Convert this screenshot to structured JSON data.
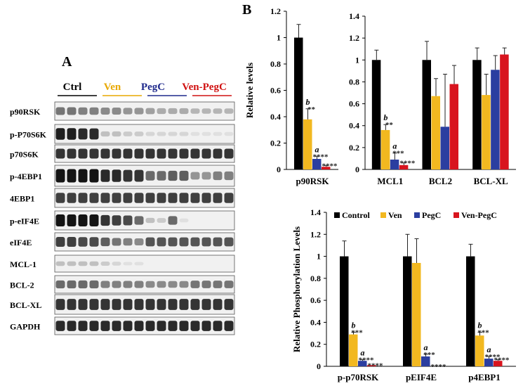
{
  "panel_labels": {
    "A": "A",
    "B": "B"
  },
  "blot": {
    "groups": [
      {
        "label": "Ctrl",
        "color": "#000000"
      },
      {
        "label": "Ven",
        "color": "#e8a800"
      },
      {
        "label": "PegC",
        "color": "#1f2a8c"
      },
      {
        "label": "Ven-PegC",
        "color": "#d01010"
      }
    ],
    "rows": [
      {
        "label": "p90RSK",
        "intensities": [
          0.55,
          0.55,
          0.5,
          0.5,
          0.45,
          0.45,
          0.4,
          0.4,
          0.35,
          0.3,
          0.3,
          0.3,
          0.25,
          0.25,
          0.25,
          0.25
        ]
      },
      {
        "label": "p-P70S6K",
        "intensities": [
          0.95,
          0.95,
          0.9,
          0.9,
          0.2,
          0.2,
          0.15,
          0.15,
          0.1,
          0.1,
          0.1,
          0.1,
          0.05,
          0.05,
          0.05,
          0.05
        ]
      },
      {
        "label": "p70S6K",
        "intensities": [
          0.85,
          0.85,
          0.85,
          0.85,
          0.85,
          0.85,
          0.85,
          0.85,
          0.85,
          0.85,
          0.85,
          0.85,
          0.85,
          0.85,
          0.85,
          0.85
        ]
      },
      {
        "label": "p-4EBP1",
        "intensities": [
          1,
          1,
          1,
          1,
          0.9,
          0.9,
          0.85,
          0.85,
          0.6,
          0.6,
          0.65,
          0.65,
          0.4,
          0.4,
          0.5,
          0.5
        ]
      },
      {
        "label": "4EBP1",
        "intensities": [
          0.8,
          0.8,
          0.8,
          0.8,
          0.8,
          0.8,
          0.8,
          0.8,
          0.8,
          0.8,
          0.8,
          0.8,
          0.8,
          0.8,
          0.8,
          0.8
        ]
      },
      {
        "label": "p-eIF4E",
        "intensities": [
          1,
          1,
          1,
          1,
          0.85,
          0.8,
          0.75,
          0.6,
          0.2,
          0.15,
          0.6,
          0.05,
          0,
          0,
          0,
          0
        ]
      },
      {
        "label": "eIF4E",
        "intensities": [
          0.8,
          0.8,
          0.75,
          0.75,
          0.65,
          0.55,
          0.5,
          0.45,
          0.7,
          0.7,
          0.7,
          0.7,
          0.7,
          0.7,
          0.7,
          0.7
        ]
      },
      {
        "label": "MCL-1",
        "intensities": [
          0.2,
          0.2,
          0.2,
          0.2,
          0.15,
          0.1,
          0.05,
          0.05,
          0,
          0,
          0,
          0,
          0,
          0,
          0,
          0
        ]
      },
      {
        "label": "BCL-2",
        "intensities": [
          0.6,
          0.6,
          0.6,
          0.6,
          0.5,
          0.5,
          0.5,
          0.5,
          0.45,
          0.45,
          0.45,
          0.45,
          0.55,
          0.55,
          0.55,
          0.55
        ]
      },
      {
        "label": "BCL-XL",
        "intensities": [
          0.85,
          0.85,
          0.85,
          0.85,
          0.85,
          0.85,
          0.85,
          0.85,
          0.85,
          0.85,
          0.85,
          0.85,
          0.85,
          0.85,
          0.85,
          0.85
        ]
      },
      {
        "label": "GAPDH",
        "intensities": [
          0.9,
          0.9,
          0.9,
          0.9,
          0.9,
          0.9,
          0.9,
          0.9,
          0.9,
          0.9,
          0.9,
          0.9,
          0.9,
          0.9,
          0.9,
          0.9
        ]
      }
    ]
  },
  "chart_data": [
    {
      "type": "bar",
      "title": "",
      "xlabel": "",
      "ylabel": "Relative levels",
      "ylim": [
        0,
        1.2
      ],
      "yticks": [
        "0",
        "0.2",
        "0.4",
        "0.6",
        "0.8",
        "1",
        "1.2"
      ],
      "categories": [
        "p90RSK"
      ],
      "series": [
        {
          "name": "Control",
          "color": "#000000",
          "values": [
            1.0
          ],
          "errors": [
            0.1
          ],
          "annotations": [
            ""
          ],
          "letters": [
            ""
          ]
        },
        {
          "name": "Ven",
          "color": "#f2b820",
          "values": [
            0.38
          ],
          "errors": [
            0.08
          ],
          "annotations": [
            "**"
          ],
          "letters": [
            "b"
          ]
        },
        {
          "name": "PegC",
          "color": "#2b3ea0",
          "values": [
            0.08
          ],
          "errors": [
            0.02
          ],
          "annotations": [
            "****"
          ],
          "letters": [
            "a"
          ]
        },
        {
          "name": "Ven-PegC",
          "color": "#d8141e",
          "values": [
            0.02
          ],
          "errors": [
            0.01
          ],
          "annotations": [
            "****"
          ],
          "letters": [
            ""
          ]
        }
      ]
    },
    {
      "type": "bar",
      "title": "",
      "xlabel": "",
      "ylabel": "",
      "ylim": [
        0,
        1.4
      ],
      "yticks": [
        "0",
        "0.2",
        "0.4",
        "0.6",
        "0.8",
        "1",
        "1.2",
        "1.4"
      ],
      "categories": [
        "MCL1",
        "BCL2",
        "BCL-XL"
      ],
      "series": [
        {
          "name": "Control",
          "color": "#000000",
          "values": [
            1.0,
            1.0,
            1.0
          ],
          "errors": [
            0.09,
            0.17,
            0.11
          ],
          "annotations": [
            "",
            "",
            ""
          ],
          "letters": [
            "",
            "",
            ""
          ]
        },
        {
          "name": "Ven",
          "color": "#f2b820",
          "values": [
            0.36,
            0.67,
            0.68
          ],
          "errors": [
            0.05,
            0.16,
            0.19
          ],
          "annotations": [
            "**",
            "",
            ""
          ],
          "letters": [
            "b",
            "",
            ""
          ]
        },
        {
          "name": "PegC",
          "color": "#2b3ea0",
          "values": [
            0.09,
            0.39,
            0.91
          ],
          "errors": [
            0.06,
            0.48,
            0.13
          ],
          "annotations": [
            "***",
            "",
            ""
          ],
          "letters": [
            "a",
            "",
            ""
          ]
        },
        {
          "name": "Ven-PegC",
          "color": "#d8141e",
          "values": [
            0.04,
            0.78,
            1.05
          ],
          "errors": [
            0.02,
            0.17,
            0.06
          ],
          "annotations": [
            "****",
            "",
            ""
          ],
          "letters": [
            "",
            "",
            ""
          ]
        }
      ]
    },
    {
      "type": "bar",
      "title": "",
      "xlabel": "",
      "ylabel": "Relative Phosphorylation Levels",
      "ylim": [
        0,
        1.4
      ],
      "yticks": [
        "0",
        "0.2",
        "0.4",
        "0.6",
        "0.8",
        "1",
        "1.2",
        "1.4"
      ],
      "categories": [
        "p-p70RSK",
        "pEIF4E",
        "p4EBP1"
      ],
      "legend": {
        "placement": "top",
        "entries": [
          "Control",
          "Ven",
          "PegC",
          "Ven-PegC"
        ]
      },
      "series": [
        {
          "name": "Control",
          "color": "#000000",
          "values": [
            1.0,
            1.0,
            1.0
          ],
          "errors": [
            0.14,
            0.2,
            0.11
          ],
          "annotations": [
            "",
            "",
            ""
          ],
          "letters": [
            "",
            "",
            ""
          ]
        },
        {
          "name": "Ven",
          "color": "#f2b820",
          "values": [
            0.29,
            0.94,
            0.28
          ],
          "errors": [
            0.02,
            0.22,
            0.03
          ],
          "annotations": [
            "***",
            "",
            "***"
          ],
          "letters": [
            "b",
            "",
            "b"
          ]
        },
        {
          "name": "PegC",
          "color": "#2b3ea0",
          "values": [
            0.05,
            0.09,
            0.07
          ],
          "errors": [
            0.01,
            0.02,
            0.02
          ],
          "annotations": [
            "****",
            "***",
            "****"
          ],
          "letters": [
            "a",
            "a",
            "a"
          ]
        },
        {
          "name": "Ven-PegC",
          "color": "#d8141e",
          "values": [
            0.01,
            0.0,
            0.05
          ],
          "errors": [
            0.0,
            0.0,
            0.01
          ],
          "annotations": [
            "****",
            "****",
            "****"
          ],
          "letters": [
            "",
            "",
            ""
          ]
        }
      ]
    }
  ]
}
